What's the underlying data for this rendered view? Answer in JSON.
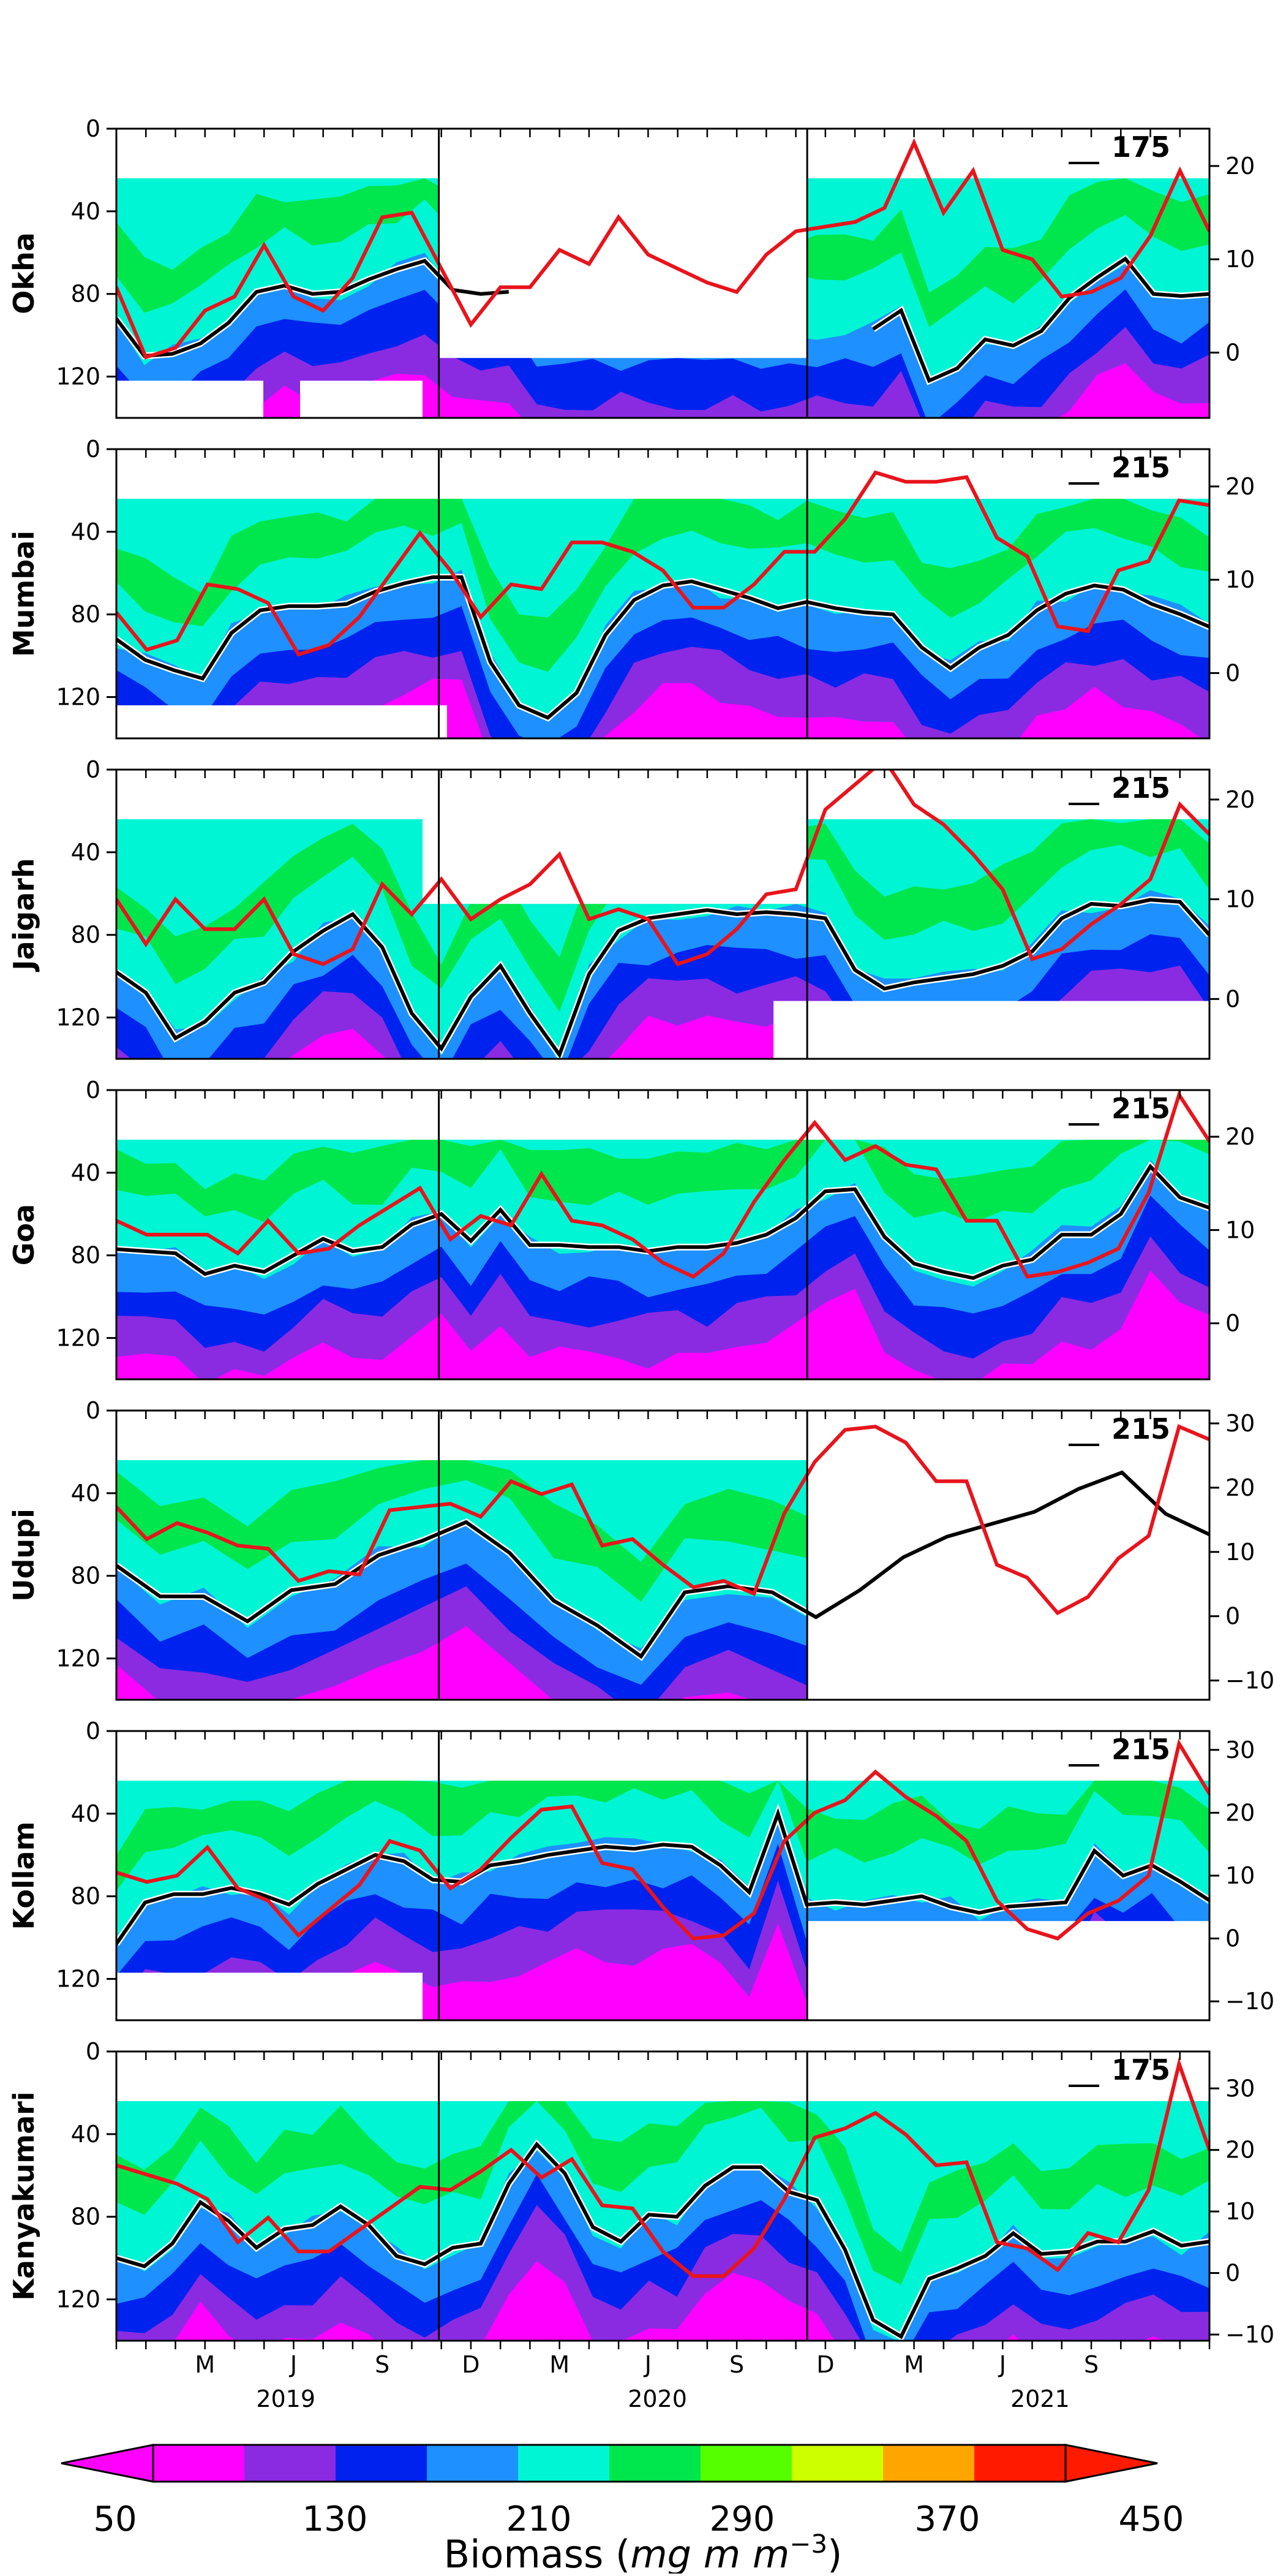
{
  "chart_data": {
    "type": "heatmap",
    "colorbar": {
      "title": "Biomass (mg m⁻³)",
      "title_plain": "Biomass",
      "title_unit": "mg m",
      "title_exp": "−3",
      "ticks": [
        50,
        130,
        210,
        290,
        370,
        450
      ],
      "levels": [
        50,
        90,
        130,
        170,
        210,
        250,
        290,
        330,
        370,
        410,
        450
      ],
      "colors": [
        "#ff00ff",
        "#8a2be2",
        "#0022ee",
        "#1e90ff",
        "#00f5d4",
        "#00e64d",
        "#55ff00",
        "#ccff00",
        "#ffa500",
        "#ff1a00"
      ],
      "extend": "both"
    },
    "x_axis": {
      "month_ticks": [
        "M",
        "J",
        "S",
        "D",
        "M",
        "J",
        "S",
        "D",
        "M",
        "J",
        "S"
      ],
      "years": [
        "2019",
        "2020",
        "2021"
      ]
    },
    "left_axis": {
      "ticks": [
        0,
        40,
        80,
        120
      ],
      "ylim": [
        0,
        140
      ],
      "inverted": true
    },
    "panels": [
      {
        "name": "Okha",
        "isoline": "175",
        "right_ticks": [
          0,
          10,
          20
        ],
        "right_ylim": [
          -7,
          24
        ],
        "temperature": [
          7,
          -0.5,
          0.5,
          4.5,
          6,
          11.5,
          6,
          4.5,
          8,
          14.5,
          15,
          9,
          3,
          7,
          7,
          11,
          9.5,
          14.5,
          10.5,
          9,
          7.5,
          6.5,
          10.5,
          13,
          13.5,
          14,
          15.5,
          22.5,
          15,
          19.5,
          11,
          10,
          6,
          6.5,
          8,
          12.5,
          19.5,
          13
        ],
        "isoline_depth": [
          92,
          110,
          109,
          104,
          94,
          79,
          76,
          80,
          79,
          73,
          68,
          64,
          78,
          80,
          79,
          null,
          null,
          null,
          null,
          null,
          null,
          null,
          null,
          null,
          null,
          null,
          null,
          97,
          88,
          122,
          116,
          102,
          105,
          98,
          82,
          72,
          63,
          80,
          81,
          80
        ]
      },
      {
        "name": "Mumbai",
        "isoline": "215",
        "right_ticks": [
          0,
          10,
          20
        ],
        "right_ylim": [
          -7,
          24
        ],
        "temperature": [
          6.5,
          2.5,
          3.5,
          9.5,
          9,
          7.5,
          2,
          3,
          6,
          10.5,
          15,
          11,
          6,
          9.5,
          9,
          14,
          14,
          13,
          11,
          7,
          7,
          9.5,
          13,
          13,
          16.5,
          21.5,
          20.5,
          20.5,
          21,
          14.5,
          12.5,
          5,
          4.5,
          11,
          12,
          18.5,
          18
        ],
        "isoline_depth": [
          92,
          102,
          107,
          111,
          89,
          78,
          76,
          76,
          75,
          69,
          65,
          62,
          62,
          103,
          124,
          130,
          118,
          90,
          73,
          66,
          64,
          68,
          72,
          77,
          74,
          77,
          79,
          80,
          96,
          106,
          96,
          90,
          78,
          70,
          66,
          68,
          75,
          80,
          86
        ]
      },
      {
        "name": "Jaigarh",
        "isoline": "215",
        "right_ticks": [
          0,
          10,
          20
        ],
        "right_ylim": [
          -6,
          23
        ],
        "temperature": [
          10,
          5.5,
          10,
          7,
          7,
          10,
          4.5,
          3.5,
          5,
          11.5,
          8.5,
          12,
          8,
          10,
          11.5,
          14.5,
          8,
          9,
          8,
          3.5,
          4.5,
          7,
          10.5,
          11,
          19,
          21.5,
          24,
          19.5,
          17.5,
          14.5,
          11,
          4,
          5,
          7.5,
          9.5,
          12,
          19.5,
          16.5
        ],
        "isoline_depth": [
          98,
          108,
          130,
          122,
          108,
          103,
          88,
          78,
          70,
          86,
          118,
          135,
          110,
          95,
          118,
          138,
          99,
          78,
          72,
          70,
          68,
          70,
          69,
          70,
          72,
          97,
          106,
          103,
          101,
          99,
          95,
          88,
          72,
          65,
          66,
          63,
          64,
          80
        ]
      },
      {
        "name": "Goa",
        "isoline": "215",
        "right_ticks": [
          0,
          10,
          20
        ],
        "right_ylim": [
          -6,
          25
        ],
        "temperature": [
          11,
          9.5,
          9.5,
          9.5,
          7.5,
          11,
          7.5,
          8,
          10.5,
          12.5,
          14.5,
          9,
          11.5,
          10.5,
          16,
          11,
          10.5,
          9,
          6.5,
          5,
          7.5,
          13,
          17.5,
          21.5,
          17.5,
          19,
          17,
          16.5,
          11,
          11,
          5,
          5.5,
          6.5,
          8,
          14,
          24.5,
          19.5
        ],
        "isoline_depth": [
          77,
          78,
          79,
          89,
          85,
          88,
          80,
          72,
          78,
          76,
          65,
          60,
          73,
          58,
          75,
          75,
          76,
          76,
          78,
          76,
          76,
          74,
          70,
          62,
          49,
          48,
          71,
          84,
          88,
          91,
          85,
          82,
          70,
          70,
          60,
          37,
          52,
          57
        ]
      },
      {
        "name": "Udupi",
        "isoline": "215",
        "right_ticks": [
          -10,
          0,
          10,
          20,
          30
        ],
        "right_ylim": [
          -13,
          32
        ],
        "temperature": [
          17,
          12,
          14.5,
          13,
          11,
          10.5,
          5.5,
          7,
          6.5,
          16.5,
          17,
          17.5,
          15.5,
          21,
          19,
          20.5,
          11,
          12,
          8,
          4.5,
          5.5,
          3.5,
          16,
          24,
          29,
          29.5,
          27,
          21,
          21,
          8,
          6,
          0.5,
          3,
          9,
          12.5,
          29.5,
          27.5
        ],
        "isoline_depth": [
          75,
          90,
          90,
          102,
          87,
          84,
          70,
          63,
          54,
          69,
          92,
          104,
          119,
          88,
          85,
          88,
          100,
          87,
          71,
          61,
          55,
          49,
          38,
          30,
          50,
          60
        ]
      },
      {
        "name": "Kollam",
        "isoline": "215",
        "right_ticks": [
          -10,
          0,
          10,
          20,
          30
        ],
        "right_ylim": [
          -13,
          33
        ],
        "temperature": [
          10.5,
          9,
          10,
          14.5,
          8,
          6,
          0.5,
          4.5,
          8.5,
          15.5,
          14,
          8,
          11,
          16,
          20.5,
          21,
          12,
          11,
          5,
          0,
          0.5,
          4,
          15.5,
          20,
          22,
          26.5,
          22.5,
          19.5,
          15.5,
          6,
          1.5,
          0,
          4,
          6,
          10,
          31,
          23
        ],
        "isoline_depth": [
          103,
          83,
          79,
          79,
          76,
          79,
          84,
          74,
          67,
          60,
          63,
          72,
          73,
          65,
          63,
          60,
          58,
          56,
          57,
          55,
          56,
          65,
          78,
          40,
          84,
          83,
          84,
          82,
          80,
          85,
          88,
          85,
          84,
          83,
          58,
          70,
          65,
          73,
          82
        ]
      },
      {
        "name": "Kanyakumari",
        "isoline": "175",
        "right_ticks": [
          -10,
          0,
          10,
          20,
          30
        ],
        "right_ylim": [
          -11,
          36
        ],
        "temperature": [
          17.5,
          16,
          14.5,
          12,
          5,
          9,
          3.5,
          3.5,
          7,
          10.5,
          14,
          13.5,
          16.5,
          20,
          15.5,
          18.5,
          11,
          10.5,
          3.5,
          -0.5,
          -0.5,
          4,
          12,
          22,
          23.5,
          26,
          22.5,
          17.5,
          18,
          5,
          4,
          0.5,
          6.5,
          5,
          13.5,
          34,
          20
        ],
        "isoline_depth": [
          100,
          104,
          93,
          73,
          82,
          95,
          86,
          84,
          75,
          84,
          99,
          103,
          95,
          93,
          64,
          45,
          59,
          85,
          92,
          79,
          80,
          65,
          56,
          56,
          68,
          72,
          96,
          130,
          138,
          110,
          105,
          99,
          88,
          98,
          97,
          92,
          92,
          87,
          94,
          92
        ]
      }
    ]
  }
}
